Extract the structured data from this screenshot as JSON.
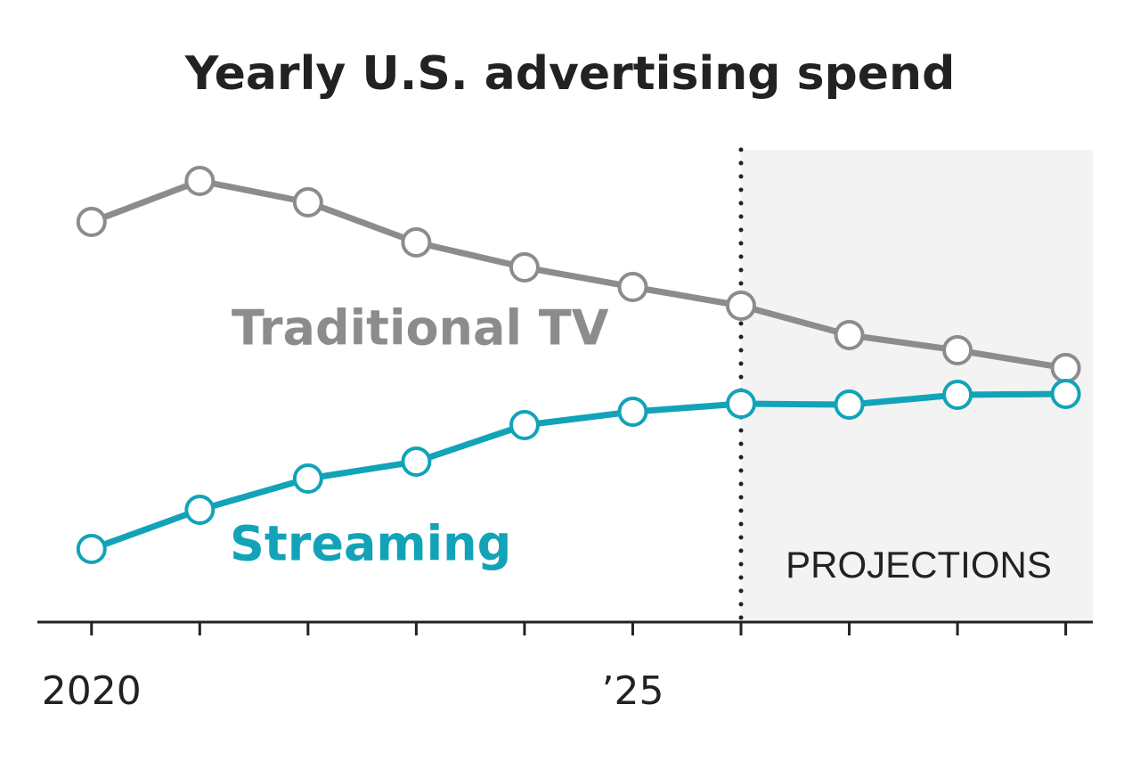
{
  "chart_data": {
    "type": "line",
    "title": "Yearly U.S. advertising spend",
    "x": [
      2020,
      2021,
      2022,
      2023,
      2024,
      2025,
      2026,
      2027,
      2028,
      2029
    ],
    "series": [
      {
        "name": "Traditional TV",
        "color": "#8c8c8c",
        "values": [
          44.9,
          49.5,
          47.1,
          42.6,
          39.8,
          37.6,
          35.5,
          32.2,
          30.5,
          28.5
        ]
      },
      {
        "name": "Streaming",
        "color": "#12a3b8",
        "values": [
          8.2,
          12.6,
          16.1,
          18,
          22.1,
          23.6,
          24.5,
          24.4,
          25.5,
          25.6
        ]
      }
    ],
    "xlim": [
      2019.5,
      2029.25
    ],
    "ylim": [
      0,
      53
    ],
    "xticks": [
      2020,
      {
        "value": 2021,
        "label": null
      },
      {
        "value": 2022,
        "label": null
      },
      {
        "value": 2023,
        "label": null
      },
      {
        "value": 2024,
        "label": null
      },
      {
        "value": 2025,
        "label": "’25"
      },
      {
        "value": 2026,
        "label": null
      },
      {
        "value": 2027,
        "label": null
      },
      {
        "value": 2028,
        "label": null
      },
      {
        "value": 2029,
        "label": null
      }
    ],
    "projection_start": 2026,
    "projection_label": "PROJECTIONS"
  }
}
